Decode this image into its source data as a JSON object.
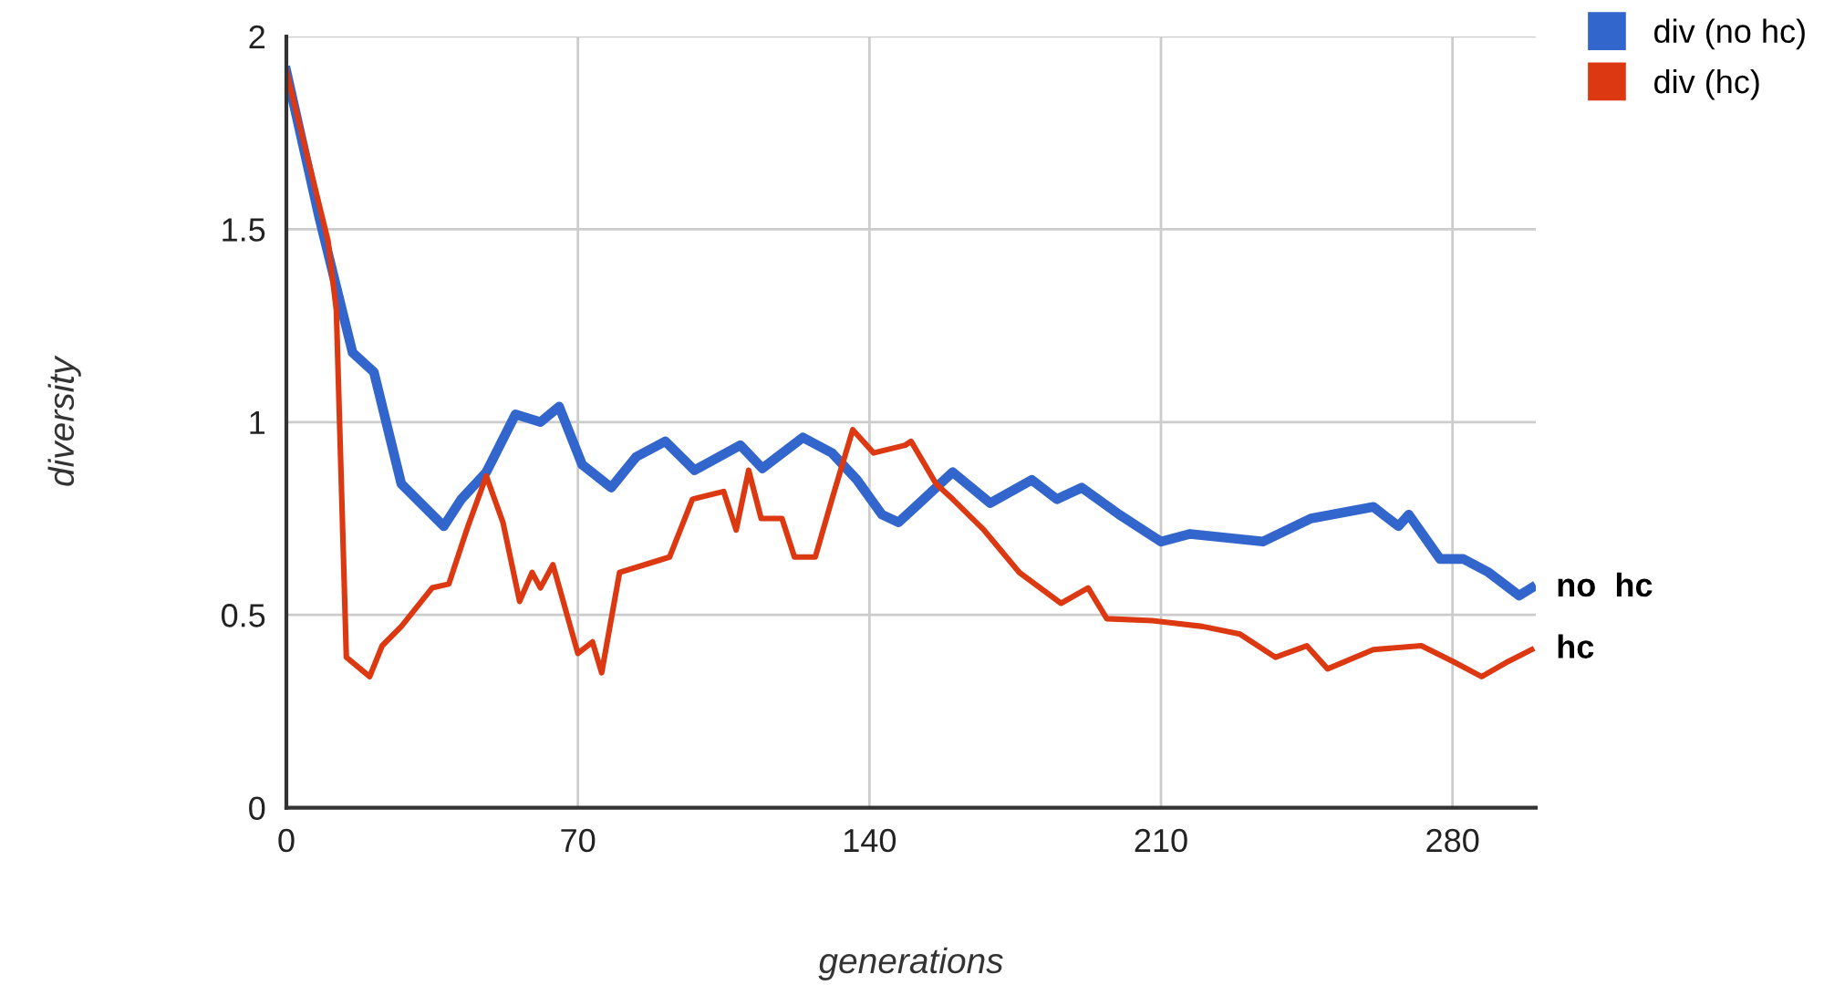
{
  "chart_data": {
    "type": "line",
    "xlabel": "generations",
    "ylabel": "diversity",
    "xlim": [
      0,
      300
    ],
    "ylim": [
      0,
      2
    ],
    "xticks": [
      0,
      70,
      140,
      210,
      280
    ],
    "yticks": [
      0,
      0.5,
      1,
      1.5,
      2
    ],
    "grid": true,
    "legend": "top right",
    "marker": "none",
    "line_style": "solid",
    "series": [
      {
        "name": "div (no hc)",
        "color": "#3366cc",
        "x": [
          0,
          7.9,
          15.9,
          21,
          27.6,
          37.8,
          42,
          48,
          55,
          61,
          65.5,
          71,
          78,
          84,
          91,
          98,
          109,
          114.3,
          124,
          131,
          137,
          143,
          147,
          160,
          169,
          179,
          185,
          191,
          200,
          210,
          217,
          234.5,
          246,
          261,
          267,
          269.5,
          277,
          282.6,
          288.7,
          296,
          299
        ],
        "values": [
          1.91,
          1.53,
          1.18,
          1.13,
          0.84,
          0.73,
          0.8,
          0.87,
          1.02,
          1.0,
          1.04,
          0.89,
          0.83,
          0.91,
          0.95,
          0.875,
          0.94,
          0.88,
          0.96,
          0.92,
          0.85,
          0.76,
          0.74,
          0.87,
          0.79,
          0.85,
          0.8,
          0.83,
          0.76,
          0.69,
          0.71,
          0.69,
          0.75,
          0.78,
          0.73,
          0.76,
          0.645,
          0.645,
          0.61,
          0.55,
          0.57
        ]
      },
      {
        "name": "div (hc)",
        "color": "#dc3912",
        "x": [
          0,
          10,
          12,
          14.4,
          20,
          23,
          27.6,
          35,
          39,
          43.6,
          48,
          52,
          56,
          59,
          61,
          64,
          70,
          73.5,
          75.7,
          80,
          86,
          92,
          97.5,
          105,
          108,
          111,
          114,
          119,
          122,
          127,
          131,
          136,
          141,
          148.6,
          150,
          156,
          160,
          167.5,
          176,
          186,
          192.5,
          197,
          208,
          220,
          229,
          237.5,
          245,
          250,
          261,
          272.5,
          280,
          287,
          293.5,
          299
        ],
        "values": [
          1.91,
          1.47,
          1.29,
          0.39,
          0.34,
          0.42,
          0.47,
          0.57,
          0.58,
          0.73,
          0.86,
          0.74,
          0.535,
          0.61,
          0.57,
          0.63,
          0.4,
          0.43,
          0.35,
          0.61,
          0.63,
          0.65,
          0.8,
          0.82,
          0.72,
          0.875,
          0.75,
          0.75,
          0.65,
          0.65,
          0.8,
          0.98,
          0.92,
          0.94,
          0.95,
          0.84,
          0.8,
          0.72,
          0.61,
          0.53,
          0.57,
          0.49,
          0.485,
          0.47,
          0.45,
          0.39,
          0.42,
          0.36,
          0.41,
          0.42,
          0.38,
          0.34,
          0.38,
          0.41
        ]
      }
    ],
    "annotations": [
      {
        "text": "no  hc",
        "x": 300,
        "y": 0.57
      },
      {
        "text": "hc",
        "x": 300,
        "y": 0.41
      }
    ]
  }
}
